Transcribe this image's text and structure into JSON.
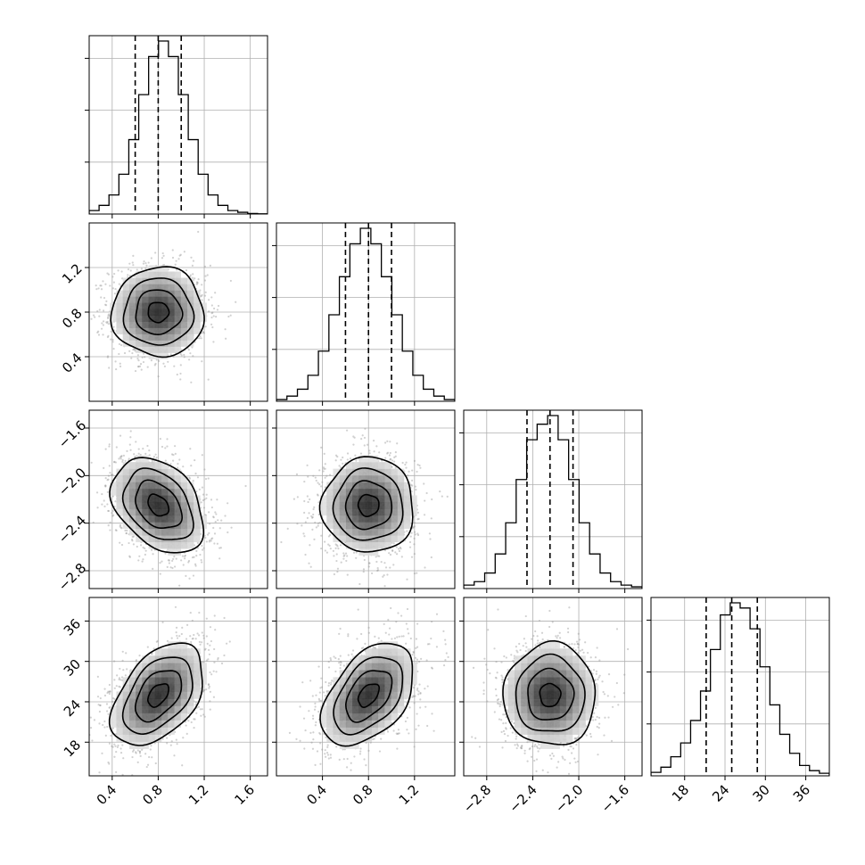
{
  "chart_data": {
    "type": "corner",
    "n_params": 4,
    "grid": true,
    "quantiles": [
      0.16,
      0.5,
      0.84
    ],
    "parameters": [
      {
        "xlim": [
          0.2,
          1.75
        ],
        "ylim": [
          -2.0,
          2.0
        ],
        "ticks": [
          0.4,
          0.8,
          1.2,
          1.6
        ],
        "tick_labels": [
          "0.4",
          "0.8",
          "1.2",
          "1.6"
        ],
        "mean": 0.8,
        "std": 0.2,
        "hist": [
          0.02,
          0.05,
          0.11,
          0.23,
          0.43,
          0.69,
          0.91,
          1.0,
          0.91,
          0.69,
          0.43,
          0.23,
          0.11,
          0.05,
          0.02,
          0.01,
          0.003,
          0.001
        ],
        "quantile_values": [
          0.6,
          0.8,
          1.0
        ]
      },
      {
        "xlim": [
          0.0,
          1.55
        ],
        "ylim": [
          0.0,
          1.6
        ],
        "ticks": [
          0.4,
          0.8,
          1.2
        ],
        "tick_labels": [
          "0.4",
          "0.8",
          "1.2"
        ],
        "mean": 0.8,
        "std": 0.2,
        "hist": [
          0.01,
          0.03,
          0.07,
          0.15,
          0.29,
          0.5,
          0.72,
          0.91,
          1.0,
          0.91,
          0.72,
          0.5,
          0.29,
          0.15,
          0.07,
          0.03,
          0.01
        ],
        "quantile_values": [
          0.6,
          0.8,
          1.0
        ]
      },
      {
        "xlim": [
          -3.0,
          -1.45
        ],
        "ylim": [
          -2.95,
          -1.45
        ],
        "ticks": [
          -2.8,
          -2.4,
          -2.0,
          -1.6
        ],
        "tick_labels": [
          "−2.8",
          "−2.4",
          "−2.0",
          "−1.6"
        ],
        "mean": -2.25,
        "std": 0.2,
        "hist": [
          0.02,
          0.04,
          0.09,
          0.2,
          0.38,
          0.63,
          0.86,
          0.95,
          1.0,
          0.86,
          0.63,
          0.38,
          0.2,
          0.09,
          0.04,
          0.02,
          0.01
        ],
        "quantile_values": [
          -2.45,
          -2.25,
          -2.05
        ]
      },
      {
        "xlim": [
          13.0,
          39.5
        ],
        "ylim": [
          13.0,
          39.5
        ],
        "ticks": [
          18,
          24,
          30,
          36
        ],
        "tick_labels": [
          "18",
          "24",
          "30",
          "36"
        ],
        "mean": 25.0,
        "std": 3.8,
        "hist": [
          0.02,
          0.05,
          0.11,
          0.19,
          0.32,
          0.49,
          0.73,
          0.93,
          1.0,
          0.97,
          0.85,
          0.63,
          0.41,
          0.24,
          0.13,
          0.06,
          0.03,
          0.015
        ],
        "quantile_values": [
          21.2,
          25.0,
          28.8
        ]
      }
    ],
    "correlations": [
      [
        1,
        0,
        -0.35,
        0.45
      ],
      [
        0,
        1,
        0,
        0.45
      ],
      [
        -0.35,
        0,
        1,
        0
      ],
      [
        0.45,
        0.45,
        0,
        1
      ]
    ]
  }
}
